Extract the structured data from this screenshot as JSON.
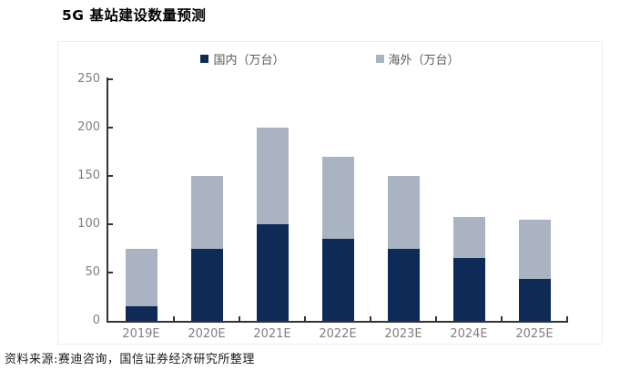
{
  "page": {
    "source_note": "资料来源:赛迪咨询，国信证券经济研究所整理"
  },
  "chart_data": {
    "type": "bar",
    "stacked": true,
    "title": "5G 基站建设数量预测",
    "categories": [
      "2019E",
      "2020E",
      "2021E",
      "2022E",
      "2023E",
      "2024E",
      "2025E"
    ],
    "series": [
      {
        "name": "国内（万台）",
        "color": "#0e2b57",
        "values": [
          15,
          75,
          100,
          85,
          75,
          65,
          43
        ]
      },
      {
        "name": "海外（万台）",
        "color": "#a9b3c1",
        "values": [
          60,
          75,
          100,
          85,
          75,
          43,
          62
        ]
      }
    ],
    "totals": [
      75,
      150,
      200,
      170,
      150,
      108,
      105
    ],
    "xlabel": "",
    "ylabel": "",
    "ylim": [
      0,
      250
    ],
    "yticks": [
      0,
      50,
      100,
      150,
      200,
      250
    ],
    "ytick_step": 50,
    "grid": false,
    "legend_position": "top",
    "axis_color": "#333333",
    "tick_label_color": "#808080"
  }
}
